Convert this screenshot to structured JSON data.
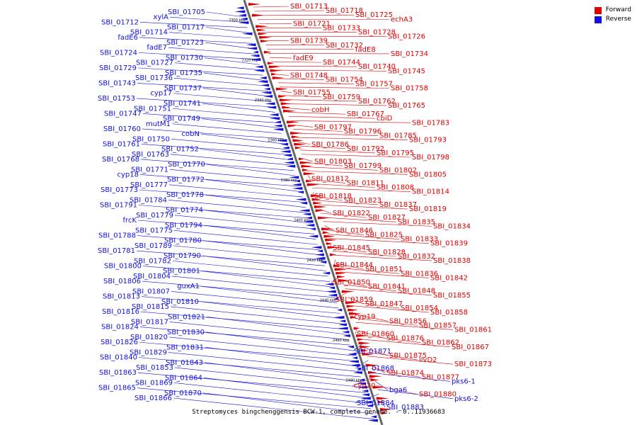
{
  "legend": {
    "forward_label": "Forward",
    "reverse_label": "Reverse",
    "forward_color": "#dd0000",
    "reverse_color": "#1010dd"
  },
  "caption": "Streptomyces bingchenggensis BCW-1, complete genome. - 0..11936683",
  "axis_ticks": [
    "2300 kbp",
    "2320 kbp",
    "2340 kbp",
    "2360 kbp",
    "2380 kbp",
    "2400 kbp",
    "2420 kbp",
    "2440 kbp",
    "2460 kbp",
    "2480 kbp"
  ],
  "left_labels": [
    "SBI_01705",
    "xylA",
    "SBI_01712",
    "SBI_01717",
    "SBI_01714",
    "fadE6",
    "SBI_01723",
    "fadE7",
    "SBI_01724",
    "SBI_01730",
    "SBI_01727",
    "SBI_01729",
    "SBI_01735",
    "SBI_01736",
    "SBI_01743",
    "SBI_01737",
    "cyp17",
    "SBI_01753",
    "SBI_01741",
    "SBI_01751",
    "SBI_01747",
    "SBI_01749",
    "mutM1",
    "SBI_01760",
    "cobN",
    "SBI_01750",
    "SBI_01761",
    "SBI_01752",
    "SBI_01763",
    "SBI_01768",
    "SBI_01770",
    "SBI_01771",
    "cyp18",
    "SBI_01772",
    "SBI_01777",
    "SBI_01773",
    "SBI_01778",
    "SBI_01784",
    "SBI_01791",
    "SBI_01774",
    "SBI_01779",
    "frcK",
    "SBI_01794",
    "SBI_01775",
    "SBI_01788",
    "SBI_01780",
    "SBI_01789",
    "SBI_01781",
    "SBI_01790",
    "SBI_01782",
    "SBI_01800",
    "SBI_01801",
    "SBI_01804",
    "SBI_01806",
    "guxA1",
    "SBI_01807",
    "SBI_01813",
    "SBI_01810",
    "SBI_01815",
    "SBI_01816",
    "SBI_01821",
    "SBI_01817",
    "SBI_01824",
    "SBI_01830",
    "SBI_01820",
    "SBI_01826",
    "SBI_01831",
    "SBI_01829",
    "SBI_01840",
    "SBI_01843",
    "SBI_01853",
    "SBI_01863",
    "SBI_01864",
    "SBI_01869",
    "SBI_01865",
    "SBI_01870",
    "SBI_01866"
  ],
  "right_labels": [
    "SBI_01713",
    "SBI_01718",
    "SBI_01725",
    "echA3",
    "SBI_01721",
    "SBI_01733",
    "SBI_01728",
    "SBI_01726",
    "SBI_01739",
    "SBI_01732",
    "fadE8",
    "SBI_01734",
    "fadE9",
    "SBI_01744",
    "SBI_01740",
    "SBI_01745",
    "SBI_01748",
    "SBI_01754",
    "SBI_01757",
    "SBI_01758",
    "SBI_01755",
    "SBI_01759",
    "SBI_01762",
    "SBI_01765",
    "cobH",
    "SBI_01767",
    "cbiD",
    "SBI_01783",
    "SBI_01797",
    "SBI_01796",
    "SBI_01785",
    "SBI_01793",
    "SBI_01786",
    "SBI_01792",
    "SBI_01795",
    "SBI_01798",
    "SBI_01803",
    "SBI_01799",
    "SBI_01802",
    "SBI_01805",
    "SBI_01812",
    "SBI_01811",
    "SBI_01808",
    "SBI_01814",
    "SBI_01818",
    "SBI_01823",
    "SBI_01837",
    "SBI_01819",
    "SBI_01822",
    "SBI_01827",
    "SBI_01835",
    "SBI_01834",
    "SBI_01846",
    "SBI_01825",
    "SBI_01833",
    "SBI_01839",
    "SBI_01845",
    "SBI_01828",
    "SBI_01832",
    "SBI_01838",
    "SBI_01844",
    "SBI_01851",
    "SBI_01836",
    "SBI_01842",
    "SBI_01850",
    "SBI_01841",
    "SBI_01848",
    "SBI_01855",
    "SBI_01859",
    "SBI_01847",
    "SBI_01854",
    "SBI_01858",
    "cyp19",
    "SBI_01856",
    "SBI_01857",
    "SBI_01861",
    "SBI_01860",
    "SBI_01876",
    "SBI_01862",
    "SBI_01867",
    "SBI_01871",
    "SBI_01875",
    "ilvD2",
    "SBI_01873",
    "SBI_01868",
    "SBI_01874",
    "SBI_01877",
    "pks6-1",
    "cyp20",
    "bga6",
    "SBI_01880",
    "pks6-2",
    "SBI_01884",
    "SBI_01883"
  ],
  "right_label_colors": {
    "SBI_01871": "#1010dd",
    "SBI_01868": "#1010dd",
    "pks6-1": "#1010dd",
    "bga6": "#1010dd",
    "pks6-2": "#1010dd",
    "SBI_01884": "#1010dd",
    "SBI_01883": "#1010dd"
  }
}
